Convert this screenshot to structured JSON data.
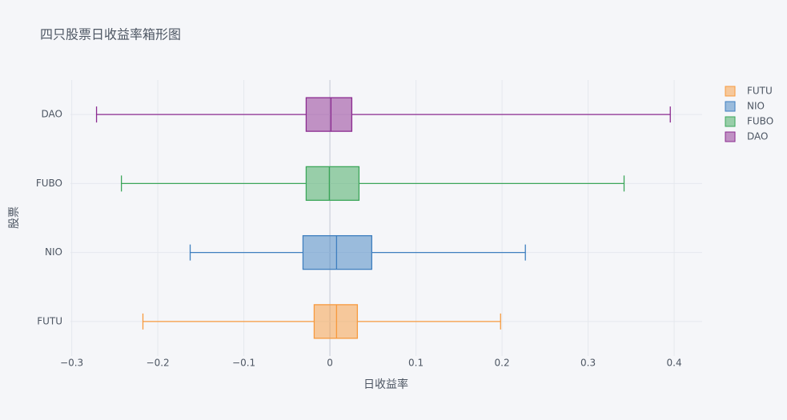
{
  "chart_data": {
    "type": "box",
    "orientation": "h",
    "title": "四只股票日收益率箱形图",
    "x_label": "日收益率",
    "y_label": "股票",
    "xlim": [
      -0.3015,
      0.4325
    ],
    "xticks": [
      {
        "value": -0.3,
        "label": "−0.3"
      },
      {
        "value": -0.2,
        "label": "−0.2"
      },
      {
        "value": -0.1,
        "label": "−0.1"
      },
      0,
      0.1,
      0.2,
      0.3,
      0.4
    ],
    "grid": true,
    "series": [
      {
        "name": "FUTU",
        "color": "#f79a3e",
        "min": -0.2173,
        "q1": -0.0183,
        "median": 0.0077,
        "q3": 0.0319,
        "max": 0.1983
      },
      {
        "name": "NIO",
        "color": "#3f7fbf",
        "min": -0.1624,
        "q1": -0.0313,
        "median": 0.0077,
        "q3": 0.0486,
        "max": 0.2271
      },
      {
        "name": "FUBO",
        "color": "#3ca65a",
        "min": -0.2423,
        "q1": -0.0276,
        "median": -0.0007,
        "q3": 0.0338,
        "max": 0.3418
      },
      {
        "name": "DAO",
        "color": "#8b2b90",
        "min": -0.2712,
        "q1": -0.0276,
        "median": 0.0012,
        "q3": 0.0254,
        "max": 0.3955
      }
    ]
  }
}
